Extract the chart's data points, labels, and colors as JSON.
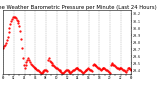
{
  "title": "Milwaukee Weather Barometric Pressure per Minute (Last 24 Hours)",
  "title_fontsize": 3.8,
  "line_color": "#ff0000",
  "bg_color": "#ffffff",
  "plot_bg_color": "#ffffff",
  "grid_color": "#888888",
  "ylim": [
    29.35,
    30.25
  ],
  "yticks": [
    29.4,
    29.5,
    29.6,
    29.7,
    29.8,
    29.9,
    30.0,
    30.1,
    30.2
  ],
  "ytick_labels": [
    "29.4",
    "29.5",
    "29.6",
    "29.7",
    "29.8",
    "29.9",
    "30.0",
    "30.1",
    "30.2"
  ],
  "num_points": 144,
  "pressure_profile": [
    29.72,
    29.74,
    29.76,
    29.79,
    29.83,
    29.88,
    29.94,
    30.0,
    30.06,
    30.1,
    30.13,
    30.15,
    30.16,
    30.15,
    30.14,
    30.12,
    30.1,
    30.07,
    30.03,
    29.96,
    29.85,
    29.72,
    29.58,
    29.48,
    29.44,
    29.47,
    29.52,
    29.55,
    29.57,
    29.55,
    29.52,
    29.49,
    29.48,
    29.46,
    29.45,
    29.44,
    29.43,
    29.42,
    29.41,
    29.4,
    29.39,
    29.38,
    29.37,
    29.37,
    29.38,
    29.39,
    29.4,
    29.41,
    29.4,
    29.39,
    29.55,
    29.57,
    29.54,
    29.52,
    29.5,
    29.48,
    29.47,
    29.46,
    29.45,
    29.44,
    29.43,
    29.42,
    29.41,
    29.4,
    29.39,
    29.38,
    29.37,
    29.37,
    29.38,
    29.39,
    29.4,
    29.41,
    29.4,
    29.39,
    29.38,
    29.37,
    29.38,
    29.39,
    29.4,
    29.41,
    29.42,
    29.43,
    29.44,
    29.43,
    29.42,
    29.41,
    29.4,
    29.39,
    29.38,
    29.37,
    29.38,
    29.39,
    29.4,
    29.41,
    29.42,
    29.43,
    29.42,
    29.41,
    29.4,
    29.39,
    29.47,
    29.49,
    29.48,
    29.47,
    29.46,
    29.45,
    29.44,
    29.43,
    29.42,
    29.41,
    29.42,
    29.43,
    29.44,
    29.43,
    29.42,
    29.41,
    29.4,
    29.39,
    29.38,
    29.37,
    29.48,
    29.5,
    29.49,
    29.48,
    29.47,
    29.46,
    29.45,
    29.44,
    29.43,
    29.42,
    29.43,
    29.44,
    29.43,
    29.42,
    29.41,
    29.4,
    29.39,
    29.38,
    29.41,
    29.43,
    29.44,
    29.43,
    29.42,
    29.41
  ],
  "num_xticks": 25,
  "marker": "o",
  "markersize": 0.6,
  "linewidth": 0.0
}
